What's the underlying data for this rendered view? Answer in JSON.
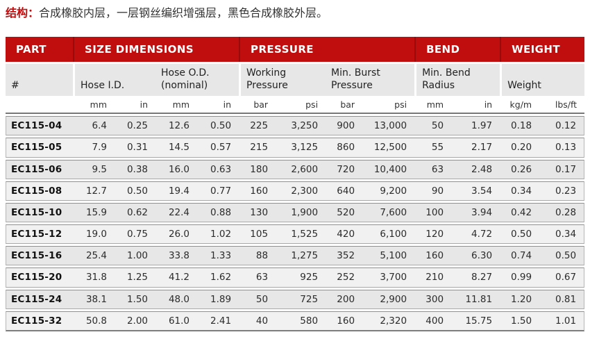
{
  "note": {
    "label": "结构：",
    "text": "合成橡胶内层，一层钢丝编织增强层，黑色合成橡胶外层。"
  },
  "colors": {
    "header_red": "#c00d0e",
    "header_divider_red": "#980b0c",
    "row_stripe_dark": "#e7e7e7",
    "row_stripe_light": "#f1f1f1"
  },
  "table": {
    "sections": [
      {
        "label": "PART",
        "cols": 1
      },
      {
        "label": "SIZE DIMENSIONS",
        "cols": 4
      },
      {
        "label": "PRESSURE",
        "cols": 4
      },
      {
        "label": "BEND",
        "cols": 2
      },
      {
        "label": "WEIGHT",
        "cols": 2
      }
    ],
    "subheaders": [
      {
        "label": "#",
        "cols": 1
      },
      {
        "label": "Hose I.D.",
        "cols": 2
      },
      {
        "label": "Hose O.D. (nominal)",
        "cols": 2
      },
      {
        "label": "Working Pressure",
        "cols": 2
      },
      {
        "label": "Min. Burst Pressure",
        "cols": 2
      },
      {
        "label": "Min. Bend Radius",
        "cols": 2
      },
      {
        "label": "Weight",
        "cols": 2
      }
    ],
    "units": [
      "",
      "mm",
      "in",
      "mm",
      "in",
      "bar",
      "psi",
      "bar",
      "psi",
      "mm",
      "in",
      "kg/m",
      "lbs/ft"
    ],
    "rows": [
      {
        "part": "EC115-04",
        "values": [
          "6.4",
          "0.25",
          "12.6",
          "0.50",
          "225",
          "3,250",
          "900",
          "13,000",
          "50",
          "1.97",
          "0.18",
          "0.12"
        ]
      },
      {
        "part": "EC115-05",
        "values": [
          "7.9",
          "0.31",
          "14.5",
          "0.57",
          "215",
          "3,125",
          "860",
          "12,500",
          "55",
          "2.17",
          "0.20",
          "0.13"
        ]
      },
      {
        "part": "EC115-06",
        "values": [
          "9.5",
          "0.38",
          "16.0",
          "0.63",
          "180",
          "2,600",
          "720",
          "10,400",
          "63",
          "2.48",
          "0.26",
          "0.17"
        ]
      },
      {
        "part": "EC115-08",
        "values": [
          "12.7",
          "0.50",
          "19.4",
          "0.77",
          "160",
          "2,300",
          "640",
          "9,200",
          "90",
          "3.54",
          "0.34",
          "0.23"
        ]
      },
      {
        "part": "EC115-10",
        "values": [
          "15.9",
          "0.62",
          "22.4",
          "0.88",
          "130",
          "1,900",
          "520",
          "7,600",
          "100",
          "3.94",
          "0.42",
          "0.28"
        ]
      },
      {
        "part": "EC115-12",
        "values": [
          "19.0",
          "0.75",
          "26.0",
          "1.02",
          "105",
          "1,525",
          "420",
          "6,100",
          "120",
          "4.72",
          "0.50",
          "0.34"
        ]
      },
      {
        "part": "EC115-16",
        "values": [
          "25.4",
          "1.00",
          "33.8",
          "1.33",
          "88",
          "1,275",
          "352",
          "5,100",
          "160",
          "6.30",
          "0.74",
          "0.50"
        ]
      },
      {
        "part": "EC115-20",
        "values": [
          "31.8",
          "1.25",
          "41.2",
          "1.62",
          "63",
          "925",
          "252",
          "3,700",
          "210",
          "8.27",
          "0.99",
          "0.67"
        ]
      },
      {
        "part": "EC115-24",
        "values": [
          "38.1",
          "1.50",
          "48.0",
          "1.89",
          "50",
          "725",
          "200",
          "2,900",
          "300",
          "11.81",
          "1.20",
          "0.81"
        ]
      },
      {
        "part": "EC115-32",
        "values": [
          "50.8",
          "2.00",
          "61.0",
          "2.41",
          "40",
          "580",
          "160",
          "2,320",
          "400",
          "15.75",
          "1.50",
          "1.01"
        ]
      }
    ]
  }
}
